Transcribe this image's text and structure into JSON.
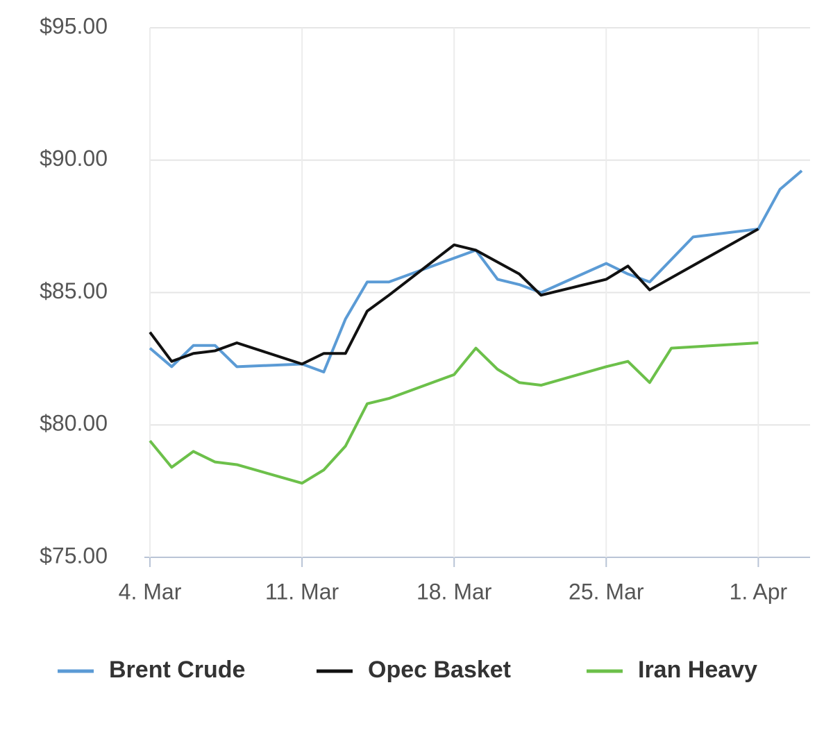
{
  "chart_data": {
    "type": "line",
    "xlim": [
      "03-04",
      "04-03"
    ],
    "xticks": [
      {
        "value": "03-04",
        "label": "4. Mar"
      },
      {
        "value": "03-11",
        "label": "11. Mar"
      },
      {
        "value": "03-18",
        "label": "18. Mar"
      },
      {
        "value": "03-25",
        "label": "25. Mar"
      },
      {
        "value": "04-01",
        "label": "1. Apr"
      }
    ],
    "ylim": [
      75,
      95
    ],
    "yticks": [
      {
        "value": 75,
        "label": "$75.00"
      },
      {
        "value": 80,
        "label": "$80.00"
      },
      {
        "value": 85,
        "label": "$85.00"
      },
      {
        "value": 90,
        "label": "$90.00"
      },
      {
        "value": 95,
        "label": "$95.00"
      }
    ],
    "grid": true,
    "legend": "bottom",
    "series": [
      {
        "name": "Brent Crude",
        "color": "#5b9bd5",
        "x": [
          "03-04",
          "03-05",
          "03-06",
          "03-07",
          "03-08",
          "03-11",
          "03-12",
          "03-13",
          "03-14",
          "03-15",
          "03-18",
          "03-19",
          "03-20",
          "03-21",
          "03-22",
          "03-25",
          "03-26",
          "03-27",
          "03-29",
          "04-01",
          "04-02",
          "04-03"
        ],
        "values": [
          82.9,
          82.2,
          83.0,
          83.0,
          82.2,
          82.3,
          82.0,
          84.0,
          85.4,
          85.4,
          86.3,
          86.6,
          85.5,
          85.3,
          85.0,
          86.1,
          85.7,
          85.4,
          87.1,
          87.4,
          88.9,
          89.6
        ]
      },
      {
        "name": "Opec Basket",
        "color": "#111111",
        "x": [
          "03-04",
          "03-05",
          "03-06",
          "03-07",
          "03-08",
          "03-11",
          "03-12",
          "03-13",
          "03-14",
          "03-15",
          "03-18",
          "03-19",
          "03-21",
          "03-22",
          "03-25",
          "03-26",
          "03-27",
          "04-01"
        ],
        "values": [
          83.5,
          82.4,
          82.7,
          82.8,
          83.1,
          82.3,
          82.7,
          82.7,
          84.3,
          84.9,
          86.8,
          86.6,
          85.7,
          84.9,
          85.5,
          86.0,
          85.1,
          87.4
        ]
      },
      {
        "name": "Iran Heavy",
        "color": "#6cc04a",
        "x": [
          "03-04",
          "03-05",
          "03-06",
          "03-07",
          "03-08",
          "03-11",
          "03-12",
          "03-13",
          "03-14",
          "03-15",
          "03-18",
          "03-19",
          "03-20",
          "03-21",
          "03-22",
          "03-25",
          "03-26",
          "03-27",
          "03-28",
          "04-01"
        ],
        "values": [
          79.4,
          78.4,
          79.0,
          78.6,
          78.5,
          77.8,
          78.3,
          79.2,
          80.8,
          81.0,
          81.9,
          82.9,
          82.1,
          81.6,
          81.5,
          82.2,
          82.4,
          81.6,
          82.9,
          83.1
        ]
      }
    ]
  }
}
